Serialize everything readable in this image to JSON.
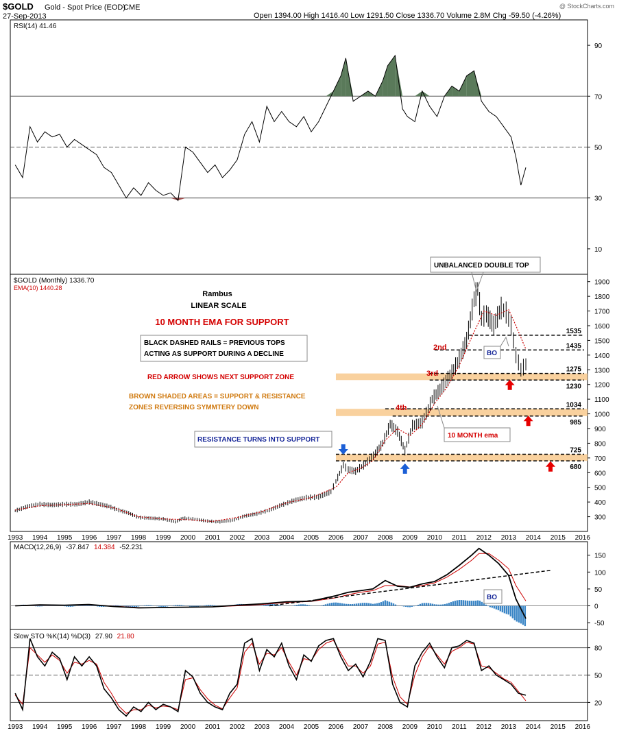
{
  "header": {
    "symbol": "$GOLD",
    "name": "Gold - Spot Price (EOD)",
    "exchange": "CME",
    "date": "27-Sep-2013",
    "quote": "Open 1394.00   High 1416.40   Low 1291.50   Close 1336.70   Volume 2.8M   Chg -59.50 (-4.26%)",
    "watermark": "@ StockCharts.com"
  },
  "colors": {
    "price": "#000000",
    "ema": "#cc0000",
    "zone": "#f8c98d",
    "rsi_fill_high": "#5a7a5a",
    "rsi_fill_low": "#a05050",
    "histogram": "#3b86c6",
    "red_arrow": "#e60000",
    "blue_arrow": "#1b5fd6"
  },
  "chart_data": [
    {
      "type": "line",
      "panel": "rsi",
      "legend": "RSI(14) 41.46",
      "yticks": [
        10,
        30,
        50,
        70,
        90
      ],
      "ylim": [
        0,
        100
      ],
      "reference_lines": [
        30,
        50,
        70
      ],
      "x": [
        1993.0,
        1993.3,
        1993.6,
        1993.9,
        1994.2,
        1994.5,
        1994.8,
        1995.1,
        1995.4,
        1995.7,
        1996.0,
        1996.3,
        1996.6,
        1996.9,
        1997.2,
        1997.5,
        1997.8,
        1998.1,
        1998.4,
        1998.7,
        1999.0,
        1999.3,
        1999.6,
        1999.9,
        2000.2,
        2000.5,
        2000.8,
        2001.1,
        2001.4,
        2001.7,
        2002.0,
        2002.3,
        2002.6,
        2002.9,
        2003.2,
        2003.5,
        2003.8,
        2004.1,
        2004.4,
        2004.7,
        2005.0,
        2005.3,
        2005.6,
        2005.9,
        2006.2,
        2006.4,
        2006.7,
        2007.0,
        2007.3,
        2007.6,
        2007.9,
        2008.1,
        2008.4,
        2008.7,
        2008.9,
        2009.2,
        2009.5,
        2009.8,
        2010.1,
        2010.4,
        2010.7,
        2011.0,
        2011.3,
        2011.6,
        2011.9,
        2012.2,
        2012.5,
        2012.8,
        2013.1,
        2013.3,
        2013.5,
        2013.7
      ],
      "y": [
        43,
        38,
        58,
        52,
        56,
        54,
        55,
        50,
        53,
        51,
        49,
        47,
        42,
        40,
        35,
        30,
        34,
        31,
        36,
        33,
        31,
        32,
        29,
        50,
        48,
        44,
        40,
        43,
        38,
        41,
        45,
        55,
        60,
        52,
        66,
        60,
        64,
        60,
        58,
        62,
        56,
        60,
        66,
        72,
        78,
        85,
        68,
        70,
        72,
        70,
        76,
        82,
        86,
        65,
        62,
        60,
        72,
        66,
        62,
        70,
        74,
        72,
        78,
        80,
        68,
        64,
        62,
        58,
        54,
        46,
        35,
        42
      ],
      "title": "",
      "xlabel": "",
      "ylabel": ""
    },
    {
      "type": "line",
      "panel": "price",
      "legend": "$GOLD (Monthly) 1336.70",
      "legend2": "EMA(10) 1440.28",
      "annotation_title": "Rambus",
      "annotation_subtitle": "LINEAR SCALE",
      "scale": "linear",
      "yticks": [
        300,
        400,
        500,
        600,
        700,
        800,
        900,
        1000,
        1100,
        1200,
        1300,
        1400,
        1500,
        1600,
        1700,
        1800,
        1900
      ],
      "ylim": [
        200,
        1950
      ],
      "xticks": [
        "1993",
        "1994",
        "1995",
        "1996",
        "1997",
        "1998",
        "1999",
        "2000",
        "2001",
        "2002",
        "2003",
        "2004",
        "2005",
        "2006",
        "2007",
        "2008",
        "2009",
        "2010",
        "2011",
        "2012",
        "2013",
        "2014",
        "2015",
        "2016"
      ],
      "xlim": [
        1992.8,
        2016.2
      ],
      "series": [
        {
          "name": "$GOLD",
          "x": [
            1993.0,
            1993.5,
            1994.0,
            1994.5,
            1995.0,
            1995.5,
            1996.0,
            1996.3,
            1996.8,
            1997.2,
            1997.6,
            1998.0,
            1998.5,
            1999.0,
            1999.5,
            1999.8,
            2000.2,
            2000.8,
            2001.3,
            2001.8,
            2002.3,
            2002.8,
            2003.3,
            2003.8,
            2004.3,
            2004.8,
            2005.3,
            2005.8,
            2006.0,
            2006.3,
            2006.5,
            2006.8,
            2007.2,
            2007.6,
            2007.9,
            2008.2,
            2008.5,
            2008.8,
            2009.1,
            2009.5,
            2009.9,
            2010.3,
            2010.7,
            2011.0,
            2011.3,
            2011.6,
            2011.75,
            2011.9,
            2012.1,
            2012.4,
            2012.7,
            2012.9,
            2013.1,
            2013.3,
            2013.5,
            2013.7
          ],
          "y": [
            340,
            370,
            385,
            380,
            385,
            385,
            400,
            390,
            370,
            345,
            325,
            295,
            290,
            285,
            265,
            290,
            285,
            270,
            265,
            275,
            305,
            320,
            345,
            380,
            410,
            430,
            435,
            470,
            540,
            650,
            620,
            610,
            660,
            730,
            800,
            930,
            880,
            750,
            920,
            940,
            1100,
            1180,
            1280,
            1370,
            1500,
            1780,
            1850,
            1650,
            1680,
            1600,
            1720,
            1690,
            1600,
            1400,
            1300,
            1336.7
          ]
        },
        {
          "name": "EMA(10)",
          "x": [
            1993.0,
            1994.0,
            1995.0,
            1996.0,
            1997.0,
            1998.0,
            1999.0,
            2000.0,
            2001.0,
            2002.0,
            2003.0,
            2004.0,
            2005.0,
            2006.0,
            2006.5,
            2007.0,
            2007.5,
            2008.0,
            2008.5,
            2009.0,
            2009.5,
            2010.0,
            2010.5,
            2011.0,
            2011.5,
            2012.0,
            2012.5,
            2013.0,
            2013.3,
            2013.7
          ],
          "y": [
            345,
            375,
            382,
            390,
            360,
            300,
            285,
            280,
            268,
            295,
            335,
            395,
            430,
            500,
            600,
            630,
            680,
            820,
            900,
            850,
            930,
            1070,
            1180,
            1330,
            1520,
            1700,
            1670,
            1710,
            1600,
            1440
          ]
        }
      ],
      "levels": [
        {
          "label": "1535",
          "value": 1535
        },
        {
          "label": "1435",
          "value": 1435
        },
        {
          "label": "1275",
          "value": 1275
        },
        {
          "label": "1230",
          "value": 1230
        },
        {
          "label": "1034",
          "value": 1034
        },
        {
          "label": "985",
          "value": 985
        },
        {
          "label": "725",
          "value": 725
        },
        {
          "label": "680",
          "value": 680
        }
      ],
      "zones": [
        {
          "low": 1230,
          "high": 1275
        },
        {
          "low": 985,
          "high": 1034
        },
        {
          "low": 680,
          "high": 725
        }
      ],
      "annotations": [
        {
          "text": "10 MONTH EMA FOR SUPPORT"
        },
        {
          "text": "BLACK DASHED RAILS = PREVIOUS TOPS"
        },
        {
          "text": "ACTING AS SUPPORT DURING A DECLINE"
        },
        {
          "text": "RED ARROW SHOWS NEXT SUPPORT ZONE"
        },
        {
          "text": "BROWN SHADED AREAS = SUPPORT & RESISTANCE"
        },
        {
          "text": "ZONES REVERSING SYMMTERY DOWN"
        },
        {
          "text": "RESISTANCE TURNS INTO SUPPORT"
        },
        {
          "text": "UNBALANCED DOUBLE TOP"
        },
        {
          "text": "10 MONTH ema"
        },
        {
          "text": "BO"
        },
        {
          "text": "2nd"
        },
        {
          "text": "3rd"
        },
        {
          "text": "4th"
        }
      ]
    },
    {
      "type": "line",
      "panel": "macd",
      "legend_prefix": "MACD(12,26,9)",
      "legend_macd": "-37.847",
      "legend_signal": "14.384",
      "legend_hist": "-52.231",
      "yticks": [
        -50,
        0,
        50,
        100,
        150
      ],
      "ylim": [
        -70,
        190
      ],
      "bo_label": "BO",
      "x": [
        1993.0,
        1994.0,
        1995.0,
        1996.0,
        1997.0,
        1998.0,
        1999.0,
        2000.0,
        2001.0,
        2002.0,
        2003.0,
        2004.0,
        2005.0,
        2006.0,
        2006.5,
        2007.0,
        2007.5,
        2008.0,
        2008.5,
        2009.0,
        2009.5,
        2010.0,
        2010.5,
        2011.0,
        2011.5,
        2011.8,
        2012.2,
        2012.6,
        2013.0,
        2013.3,
        2013.7
      ],
      "series": [
        {
          "name": "MACD",
          "y": [
            0,
            3,
            2,
            4,
            -2,
            -6,
            -5,
            -4,
            -3,
            2,
            6,
            12,
            14,
            30,
            40,
            45,
            50,
            75,
            58,
            55,
            65,
            72,
            92,
            120,
            150,
            170,
            150,
            125,
            90,
            20,
            -37.8
          ]
        },
        {
          "name": "Signal",
          "y": [
            0,
            2,
            2,
            3,
            -1,
            -5,
            -5,
            -4,
            -3,
            0,
            4,
            10,
            13,
            24,
            33,
            40,
            45,
            60,
            60,
            56,
            60,
            68,
            85,
            108,
            135,
            155,
            155,
            135,
            110,
            60,
            14.4
          ]
        }
      ]
    },
    {
      "type": "line",
      "panel": "sto",
      "legend_prefix": "Slow STO %K(14) %D(3)",
      "legend_k": "27.90",
      "legend_d": "21.80",
      "yticks": [
        20,
        50,
        80
      ],
      "ylim": [
        0,
        100
      ],
      "x": [
        1993.0,
        1993.3,
        1993.6,
        1993.9,
        1994.2,
        1994.5,
        1994.8,
        1995.1,
        1995.4,
        1995.7,
        1996.0,
        1996.3,
        1996.6,
        1996.9,
        1997.2,
        1997.5,
        1997.8,
        1998.1,
        1998.4,
        1998.7,
        1999.0,
        1999.3,
        1999.6,
        1999.9,
        2000.2,
        2000.5,
        2000.8,
        2001.1,
        2001.4,
        2001.7,
        2002.0,
        2002.3,
        2002.6,
        2002.9,
        2003.2,
        2003.5,
        2003.8,
        2004.1,
        2004.4,
        2004.7,
        2005.0,
        2005.3,
        2005.6,
        2005.9,
        2006.2,
        2006.5,
        2006.8,
        2007.1,
        2007.4,
        2007.7,
        2008.0,
        2008.3,
        2008.6,
        2008.9,
        2009.2,
        2009.5,
        2009.8,
        2010.1,
        2010.4,
        2010.7,
        2011.0,
        2011.3,
        2011.6,
        2011.9,
        2012.2,
        2012.5,
        2012.8,
        2013.1,
        2013.4,
        2013.7
      ],
      "series": [
        {
          "name": "%K",
          "y": [
            30,
            12,
            90,
            70,
            60,
            75,
            68,
            45,
            70,
            60,
            70,
            60,
            35,
            25,
            12,
            5,
            15,
            10,
            20,
            12,
            18,
            15,
            10,
            55,
            48,
            30,
            20,
            15,
            12,
            30,
            40,
            85,
            90,
            55,
            78,
            70,
            85,
            60,
            45,
            72,
            65,
            82,
            88,
            90,
            70,
            55,
            62,
            48,
            65,
            90,
            88,
            40,
            20,
            15,
            60,
            75,
            85,
            70,
            58,
            80,
            82,
            88,
            85,
            55,
            60,
            50,
            45,
            40,
            30,
            27.9
          ]
        },
        {
          "name": "%D",
          "y": [
            28,
            18,
            80,
            72,
            64,
            72,
            66,
            52,
            64,
            62,
            66,
            62,
            42,
            30,
            16,
            8,
            12,
            12,
            17,
            14,
            16,
            15,
            12,
            45,
            47,
            34,
            24,
            17,
            13,
            25,
            36,
            75,
            85,
            62,
            74,
            72,
            80,
            64,
            50,
            68,
            66,
            78,
            85,
            88,
            74,
            60,
            60,
            52,
            60,
            84,
            86,
            48,
            26,
            18,
            50,
            70,
            82,
            72,
            62,
            76,
            80,
            86,
            84,
            60,
            58,
            52,
            46,
            42,
            32,
            21.8
          ]
        }
      ]
    }
  ]
}
